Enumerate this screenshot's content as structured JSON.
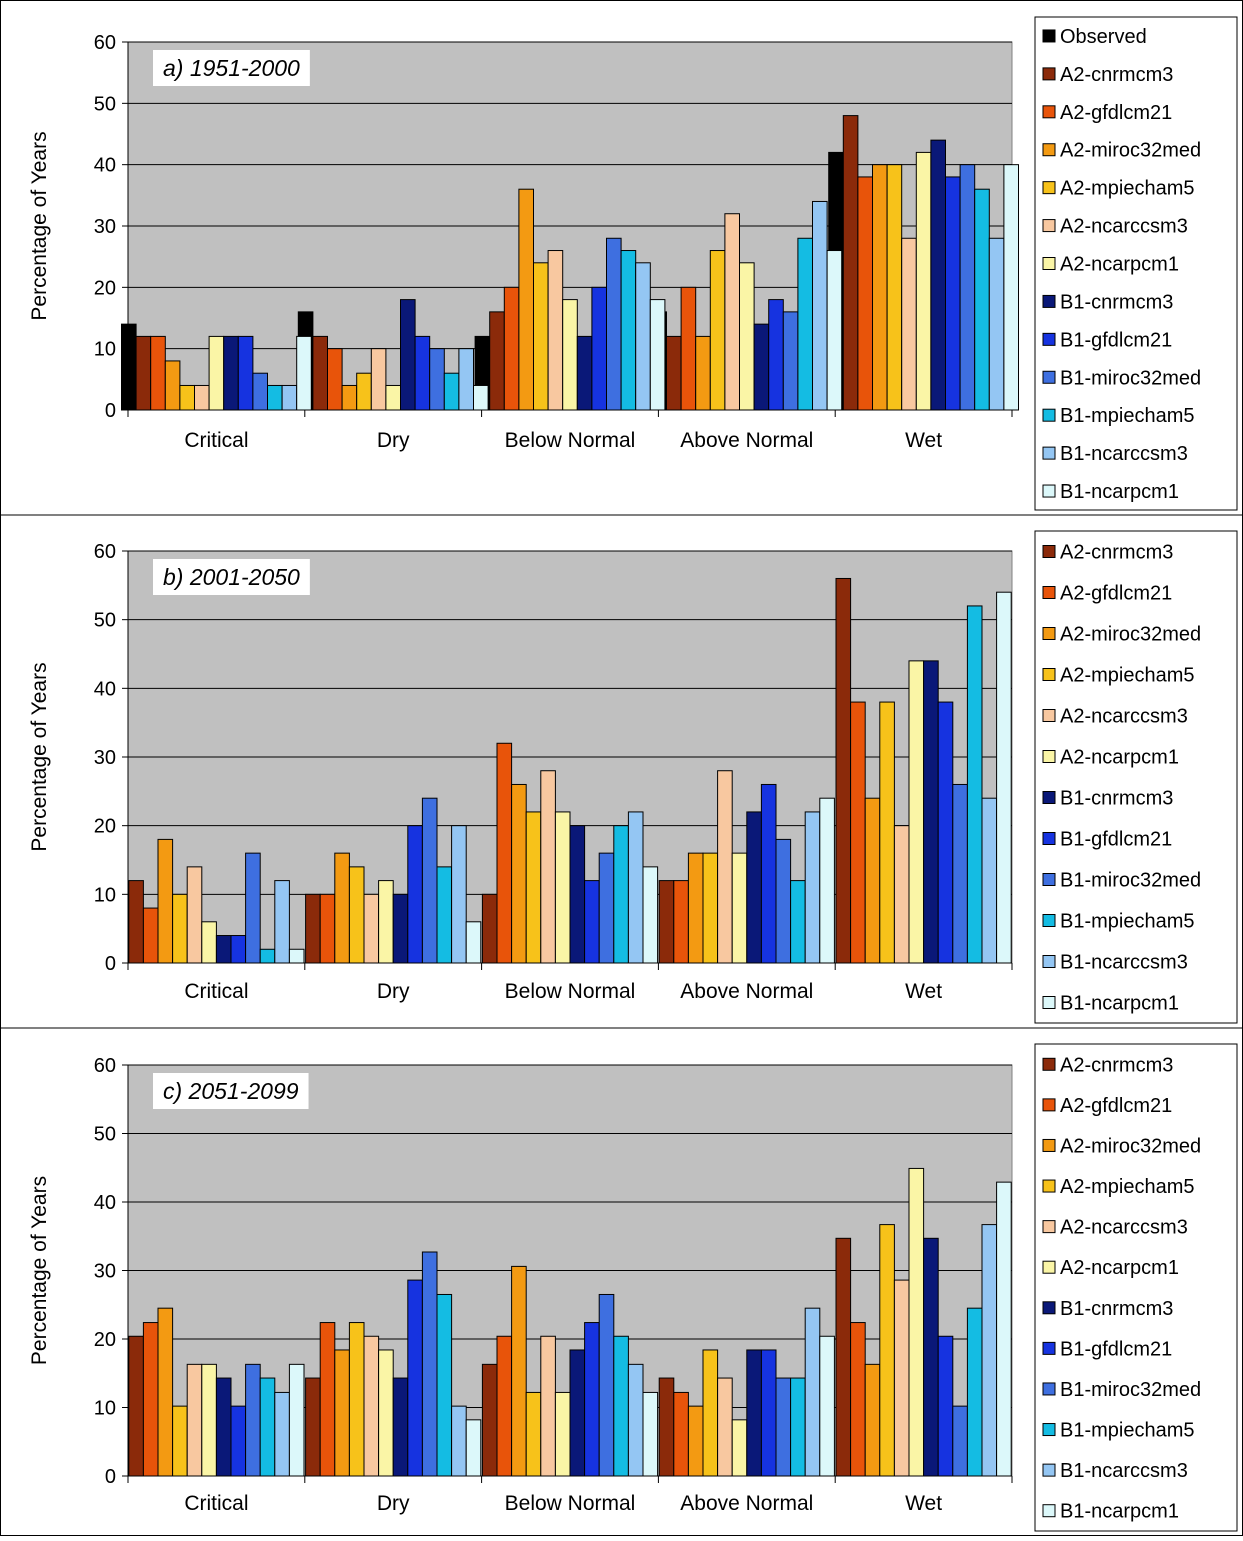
{
  "chart_data": [
    {
      "type": "bar",
      "title": "a) 1951-2000",
      "ylabel": "Percentage of Years",
      "ylim": [
        0,
        60
      ],
      "yticks": [
        0,
        10,
        20,
        30,
        40,
        50,
        60
      ],
      "grid": true,
      "legend_position": "right",
      "categories": [
        "Critical",
        "Dry",
        "Below Normal",
        "Above Normal",
        "Wet"
      ],
      "series": [
        {
          "name": "Observed",
          "color": "#000000",
          "values": [
            14,
            16,
            12,
            16,
            42
          ]
        },
        {
          "name": "A2-cnrmcm3",
          "color": "#8B2A0A",
          "values": [
            12,
            12,
            16,
            12,
            48
          ]
        },
        {
          "name": "A2-gfdlcm21",
          "color": "#E8540A",
          "values": [
            12,
            10,
            20,
            20,
            38
          ]
        },
        {
          "name": "A2-miroc32med",
          "color": "#F39A12",
          "values": [
            8,
            4,
            36,
            12,
            40
          ]
        },
        {
          "name": "A2-mpiecham5",
          "color": "#F7C21A",
          "values": [
            4,
            6,
            24,
            26,
            40
          ]
        },
        {
          "name": "A2-ncarccsm3",
          "color": "#F8C8A0",
          "values": [
            4,
            10,
            26,
            32,
            28
          ]
        },
        {
          "name": "A2-ncarpcm1",
          "color": "#FAF5A6",
          "values": [
            12,
            4,
            18,
            24,
            42
          ]
        },
        {
          "name": "B1-cnrmcm3",
          "color": "#0A1878",
          "values": [
            12,
            18,
            12,
            14,
            44
          ]
        },
        {
          "name": "B1-gfdlcm21",
          "color": "#1633E0",
          "values": [
            12,
            12,
            20,
            18,
            38
          ]
        },
        {
          "name": "B1-miroc32med",
          "color": "#3E6FE0",
          "values": [
            6,
            10,
            28,
            16,
            40
          ]
        },
        {
          "name": "B1-mpiecham5",
          "color": "#14BCE3",
          "values": [
            4,
            6,
            26,
            28,
            36
          ]
        },
        {
          "name": "B1-ncarccsm3",
          "color": "#94C6F3",
          "values": [
            4,
            10,
            24,
            34,
            28
          ]
        },
        {
          "name": "B1-ncarpcm1",
          "color": "#DCF8FA",
          "values": [
            12,
            4,
            18,
            26,
            40
          ]
        }
      ]
    },
    {
      "type": "bar",
      "title": "b) 2001-2050",
      "ylabel": "Percentage of Years",
      "ylim": [
        0,
        60
      ],
      "yticks": [
        0,
        10,
        20,
        30,
        40,
        50,
        60
      ],
      "grid": true,
      "legend_position": "right",
      "categories": [
        "Critical",
        "Dry",
        "Below Normal",
        "Above Normal",
        "Wet"
      ],
      "series": [
        {
          "name": "A2-cnrmcm3",
          "color": "#8B2A0A",
          "values": [
            12,
            10,
            10,
            12,
            56
          ]
        },
        {
          "name": "A2-gfdlcm21",
          "color": "#E8540A",
          "values": [
            8,
            10,
            32,
            12,
            38
          ]
        },
        {
          "name": "A2-miroc32med",
          "color": "#F39A12",
          "values": [
            18,
            16,
            26,
            16,
            24
          ]
        },
        {
          "name": "A2-mpiecham5",
          "color": "#F7C21A",
          "values": [
            10,
            14,
            22,
            16,
            38
          ]
        },
        {
          "name": "A2-ncarccsm3",
          "color": "#F8C8A0",
          "values": [
            14,
            10,
            28,
            28,
            20
          ]
        },
        {
          "name": "A2-ncarpcm1",
          "color": "#FAF5A6",
          "values": [
            6,
            12,
            22,
            16,
            44
          ]
        },
        {
          "name": "B1-cnrmcm3",
          "color": "#0A1878",
          "values": [
            4,
            10,
            20,
            22,
            44
          ]
        },
        {
          "name": "B1-gfdlcm21",
          "color": "#1633E0",
          "values": [
            4,
            20,
            12,
            26,
            38
          ]
        },
        {
          "name": "B1-miroc32med",
          "color": "#3E6FE0",
          "values": [
            16,
            24,
            16,
            18,
            26
          ]
        },
        {
          "name": "B1-mpiecham5",
          "color": "#14BCE3",
          "values": [
            2,
            14,
            20,
            12,
            52
          ]
        },
        {
          "name": "B1-ncarccsm3",
          "color": "#94C6F3",
          "values": [
            12,
            20,
            22,
            22,
            24
          ]
        },
        {
          "name": "B1-ncarpcm1",
          "color": "#DCF8FA",
          "values": [
            2,
            6,
            14,
            24,
            54
          ]
        }
      ]
    },
    {
      "type": "bar",
      "title": "c) 2051-2099",
      "ylabel": "Percentage of Years",
      "ylim": [
        0,
        60
      ],
      "yticks": [
        0,
        10,
        20,
        30,
        40,
        50,
        60
      ],
      "grid": true,
      "legend_position": "right",
      "categories": [
        "Critical",
        "Dry",
        "Below Normal",
        "Above Normal",
        "Wet"
      ],
      "series": [
        {
          "name": "A2-cnrmcm3",
          "color": "#8B2A0A",
          "values": [
            20.4,
            14.3,
            16.3,
            14.3,
            34.7
          ]
        },
        {
          "name": "A2-gfdlcm21",
          "color": "#E8540A",
          "values": [
            22.4,
            22.4,
            20.4,
            12.2,
            22.4
          ]
        },
        {
          "name": "A2-miroc32med",
          "color": "#F39A12",
          "values": [
            24.5,
            18.4,
            30.6,
            10.2,
            16.3
          ]
        },
        {
          "name": "A2-mpiecham5",
          "color": "#F7C21A",
          "values": [
            10.2,
            22.4,
            12.2,
            18.4,
            36.7
          ]
        },
        {
          "name": "A2-ncarccsm3",
          "color": "#F8C8A0",
          "values": [
            16.3,
            20.4,
            20.4,
            14.3,
            28.6
          ]
        },
        {
          "name": "A2-ncarpcm1",
          "color": "#FAF5A6",
          "values": [
            16.3,
            18.4,
            12.2,
            8.2,
            44.9
          ]
        },
        {
          "name": "B1-cnrmcm3",
          "color": "#0A1878",
          "values": [
            14.3,
            14.3,
            18.4,
            18.4,
            34.7
          ]
        },
        {
          "name": "B1-gfdlcm21",
          "color": "#1633E0",
          "values": [
            10.2,
            28.6,
            22.4,
            18.4,
            20.4
          ]
        },
        {
          "name": "B1-miroc32med",
          "color": "#3E6FE0",
          "values": [
            16.3,
            32.7,
            26.5,
            14.3,
            10.2
          ]
        },
        {
          "name": "B1-mpiecham5",
          "color": "#14BCE3",
          "values": [
            14.3,
            26.5,
            20.4,
            14.3,
            24.5
          ]
        },
        {
          "name": "B1-ncarccsm3",
          "color": "#94C6F3",
          "values": [
            12.2,
            10.2,
            16.3,
            24.5,
            36.7
          ]
        },
        {
          "name": "B1-ncarpcm1",
          "color": "#DCF8FA",
          "values": [
            16.3,
            8.2,
            12.2,
            20.4,
            42.9
          ]
        }
      ]
    }
  ]
}
